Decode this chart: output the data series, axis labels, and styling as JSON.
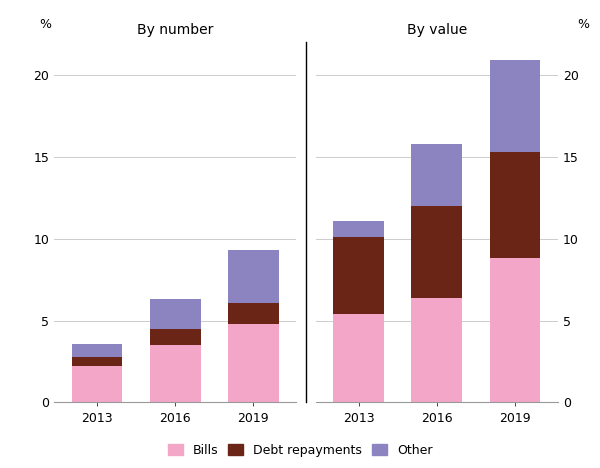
{
  "left_title": "By number",
  "right_title": "By value",
  "years": [
    "2013",
    "2016",
    "2019"
  ],
  "left_bars": {
    "bills": [
      2.2,
      3.5,
      4.8
    ],
    "debt_repayments": [
      0.6,
      1.0,
      1.3
    ],
    "other": [
      0.8,
      1.8,
      3.2
    ]
  },
  "right_bars": {
    "bills": [
      5.4,
      6.4,
      8.8
    ],
    "debt_repayments": [
      4.7,
      5.6,
      6.5
    ],
    "other": [
      1.0,
      3.8,
      5.6
    ]
  },
  "ylim": [
    0,
    22
  ],
  "yticks": [
    0,
    5,
    10,
    15,
    20
  ],
  "color_bills": "#F4A6C8",
  "color_debt": "#6B2516",
  "color_other": "#8B84C0",
  "bar_width": 0.65,
  "legend_labels": [
    "Bills",
    "Debt repayments",
    "Other"
  ],
  "background_color": "#ffffff",
  "grid_color": "#cccccc"
}
